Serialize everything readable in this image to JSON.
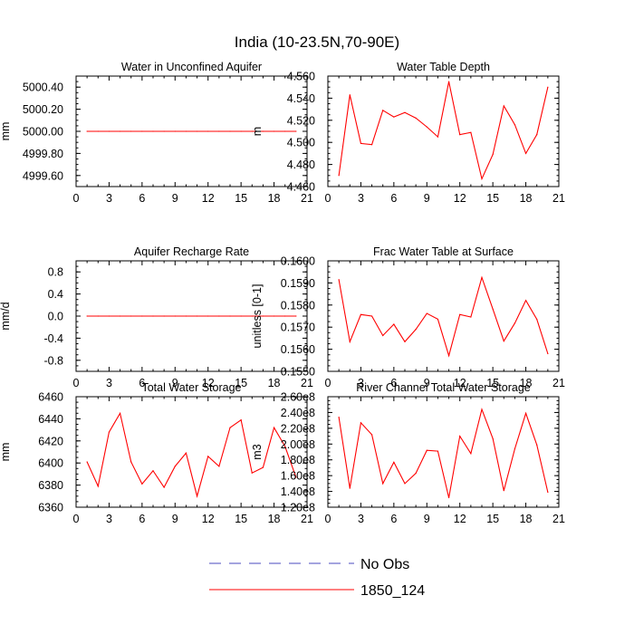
{
  "figure": {
    "title": "India (10-23.5N,70-90E)"
  },
  "chart_data": [
    {
      "type": "line",
      "title": "Water in Unconfined Aquifer",
      "ylabel": "mm",
      "xlim": [
        0,
        21
      ],
      "ylim": [
        4999.5,
        5000.5
      ],
      "xticks": [
        0,
        3,
        6,
        9,
        12,
        15,
        18,
        21
      ],
      "yticks": [
        4999.6,
        4999.8,
        5000.0,
        5000.2,
        5000.4
      ],
      "ytick_labels": [
        "4999.60",
        "4999.80",
        "5000.00",
        "5000.20",
        "5000.40"
      ],
      "x": [
        1,
        2,
        3,
        4,
        5,
        6,
        7,
        8,
        9,
        10,
        11,
        12,
        13,
        14,
        15,
        16,
        17,
        18,
        19,
        20
      ],
      "series": [
        {
          "name": "1850_124",
          "color": "#ff0000",
          "values": [
            5000,
            5000,
            5000,
            5000,
            5000,
            5000,
            5000,
            5000,
            5000,
            5000,
            5000,
            5000,
            5000,
            5000,
            5000,
            5000,
            5000,
            5000,
            5000,
            5000
          ]
        }
      ]
    },
    {
      "type": "line",
      "title": "Water Table Depth",
      "ylabel": "m",
      "xlim": [
        0,
        21
      ],
      "ylim": [
        4.46,
        4.56
      ],
      "xticks": [
        0,
        3,
        6,
        9,
        12,
        15,
        18,
        21
      ],
      "yticks": [
        4.46,
        4.48,
        4.5,
        4.52,
        4.54,
        4.56
      ],
      "ytick_labels": [
        "4.460",
        "4.480",
        "4.500",
        "4.520",
        "4.540",
        "4.560"
      ],
      "x": [
        1,
        2,
        3,
        4,
        5,
        6,
        7,
        8,
        9,
        10,
        11,
        12,
        13,
        14,
        15,
        16,
        17,
        18,
        19,
        20
      ],
      "series": [
        {
          "name": "1850_124",
          "color": "#ff0000",
          "values": [
            4.47,
            4.543,
            4.499,
            4.498,
            4.529,
            4.523,
            4.527,
            4.522,
            4.514,
            4.505,
            4.555,
            4.507,
            4.509,
            4.467,
            4.489,
            4.533,
            4.516,
            4.49,
            4.507,
            4.55
          ]
        }
      ]
    },
    {
      "type": "line",
      "title": "Aquifer Recharge Rate",
      "ylabel": "mm/d",
      "xlim": [
        0,
        21
      ],
      "ylim": [
        -1.0,
        1.0
      ],
      "xticks": [
        0,
        3,
        6,
        9,
        12,
        15,
        18,
        21
      ],
      "yticks": [
        -0.8,
        -0.4,
        0.0,
        0.4,
        0.8
      ],
      "ytick_labels": [
        "-0.8",
        "-0.4",
        "0.0",
        "0.4",
        "0.8"
      ],
      "x": [
        1,
        2,
        3,
        4,
        5,
        6,
        7,
        8,
        9,
        10,
        11,
        12,
        13,
        14,
        15,
        16,
        17,
        18,
        19,
        20
      ],
      "series": [
        {
          "name": "1850_124",
          "color": "#ff0000",
          "values": [
            0,
            0,
            0,
            0,
            0,
            0,
            0,
            0,
            0,
            0,
            0,
            0,
            0,
            0,
            0,
            0,
            0,
            0,
            0,
            0
          ]
        }
      ]
    },
    {
      "type": "line",
      "title": "Frac Water Table at Surface",
      "ylabel": "unitless [0-1]",
      "xlim": [
        0,
        21
      ],
      "ylim": [
        0.155,
        0.16
      ],
      "xticks": [
        0,
        3,
        6,
        9,
        12,
        15,
        18,
        21
      ],
      "yticks": [
        0.155,
        0.156,
        0.157,
        0.158,
        0.159,
        0.16
      ],
      "ytick_labels": [
        "0.1550",
        "0.1560",
        "0.1570",
        "0.1580",
        "0.1590",
        "0.1600"
      ],
      "x": [
        1,
        2,
        3,
        4,
        5,
        6,
        7,
        8,
        9,
        10,
        11,
        12,
        13,
        14,
        15,
        16,
        17,
        18,
        19,
        20
      ],
      "series": [
        {
          "name": "1850_124",
          "color": "#ff0000",
          "values": [
            0.15915,
            0.15634,
            0.15757,
            0.1575,
            0.15662,
            0.15713,
            0.15634,
            0.1569,
            0.15762,
            0.15736,
            0.15571,
            0.15757,
            0.15746,
            0.15925,
            0.15782,
            0.15637,
            0.15718,
            0.15821,
            0.15736,
            0.1558
          ]
        }
      ]
    },
    {
      "type": "line",
      "title": "Total Water Storage",
      "ylabel": "mm",
      "xlim": [
        0,
        21
      ],
      "ylim": [
        6360,
        6460
      ],
      "xticks": [
        0,
        3,
        6,
        9,
        12,
        15,
        18,
        21
      ],
      "yticks": [
        6360,
        6380,
        6400,
        6420,
        6440,
        6460
      ],
      "ytick_labels": [
        "6360",
        "6380",
        "6400",
        "6420",
        "6440",
        "6460"
      ],
      "x": [
        1,
        2,
        3,
        4,
        5,
        6,
        7,
        8,
        9,
        10,
        11,
        12,
        13,
        14,
        15,
        16,
        17,
        18,
        19,
        20
      ],
      "series": [
        {
          "name": "1850_124",
          "color": "#ff0000",
          "values": [
            6401,
            6379,
            6428,
            6445,
            6401,
            6381,
            6393,
            6378,
            6397,
            6409,
            6370,
            6406,
            6397,
            6432,
            6439,
            6391,
            6396,
            6432,
            6415,
            6387
          ]
        }
      ]
    },
    {
      "type": "line",
      "title": "River Channel Total Water Storage",
      "ylabel": "m3",
      "xlim": [
        0,
        21
      ],
      "ylim": [
        120000000,
        260000000
      ],
      "xticks": [
        0,
        3,
        6,
        9,
        12,
        15,
        18,
        21
      ],
      "yticks": [
        120000000,
        140000000,
        160000000,
        180000000,
        200000000,
        220000000,
        240000000,
        260000000
      ],
      "ytick_labels": [
        "1.20e8",
        "1.40e8",
        "1.60e8",
        "1.80e8",
        "2.00e8",
        "2.20e8",
        "2.40e8",
        "2.60e8"
      ],
      "x": [
        1,
        2,
        3,
        4,
        5,
        6,
        7,
        8,
        9,
        10,
        11,
        12,
        13,
        14,
        15,
        16,
        17,
        18,
        19,
        20
      ],
      "series": [
        {
          "name": "1850_124",
          "color": "#ff0000",
          "values": [
            234000000,
            144000000,
            227000000,
            212000000,
            150000000,
            177000000,
            150000000,
            163000000,
            192000000,
            191000000,
            132000000,
            210000000,
            188000000,
            244000000,
            207000000,
            141000000,
            194000000,
            239000000,
            199000000,
            139000000
          ]
        }
      ]
    }
  ],
  "legend": {
    "placement": "bottom-center",
    "items": [
      {
        "label": "No Obs",
        "color": "#4a4abf",
        "style": "dashed"
      },
      {
        "label": "1850_124",
        "color": "#ff0000",
        "style": "solid"
      }
    ]
  }
}
